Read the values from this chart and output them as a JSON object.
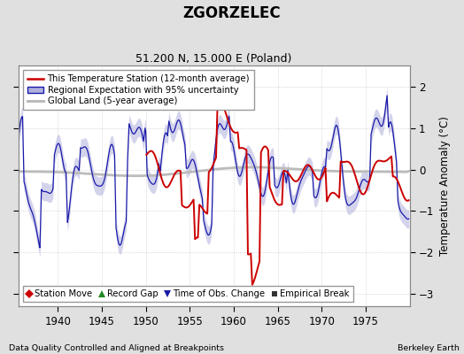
{
  "title": "ZGORZELEC",
  "subtitle": "51.200 N, 15.000 E (Poland)",
  "ylabel": "Temperature Anomaly (°C)",
  "xlabel_note": "Data Quality Controlled and Aligned at Breakpoints",
  "source_note": "Berkeley Earth",
  "xlim": [
    1935.5,
    1980.0
  ],
  "ylim": [
    -3.3,
    2.5
  ],
  "yticks": [
    -3,
    -2,
    -1,
    0,
    1,
    2
  ],
  "xticks": [
    1940,
    1945,
    1950,
    1955,
    1960,
    1965,
    1970,
    1975
  ],
  "bg_color": "#e0e0e0",
  "plot_bg_color": "#ffffff",
  "grid_color": "#c8c8c8",
  "red_color": "#cc0000",
  "blue_color": "#1a1aaa",
  "blue_fill_color": "#b0b0dd",
  "gray_color": "#bbbbbb",
  "legend1_items": [
    {
      "label": "This Temperature Station (12-month average)",
      "color": "#cc0000",
      "lw": 1.8
    },
    {
      "label": "Regional Expectation with 95% uncertainty",
      "color": "#1a1aaa",
      "lw": 1.2
    },
    {
      "label": "Global Land (5-year average)",
      "color": "#bbbbbb",
      "lw": 2.2
    }
  ],
  "legend2_items": [
    {
      "label": "Station Move",
      "marker": "D",
      "color": "#cc0000"
    },
    {
      "label": "Record Gap",
      "marker": "^",
      "color": "#228822"
    },
    {
      "label": "Time of Obs. Change",
      "marker": "v",
      "color": "#1a1aaa"
    },
    {
      "label": "Empirical Break",
      "marker": "s",
      "color": "#333333"
    }
  ]
}
